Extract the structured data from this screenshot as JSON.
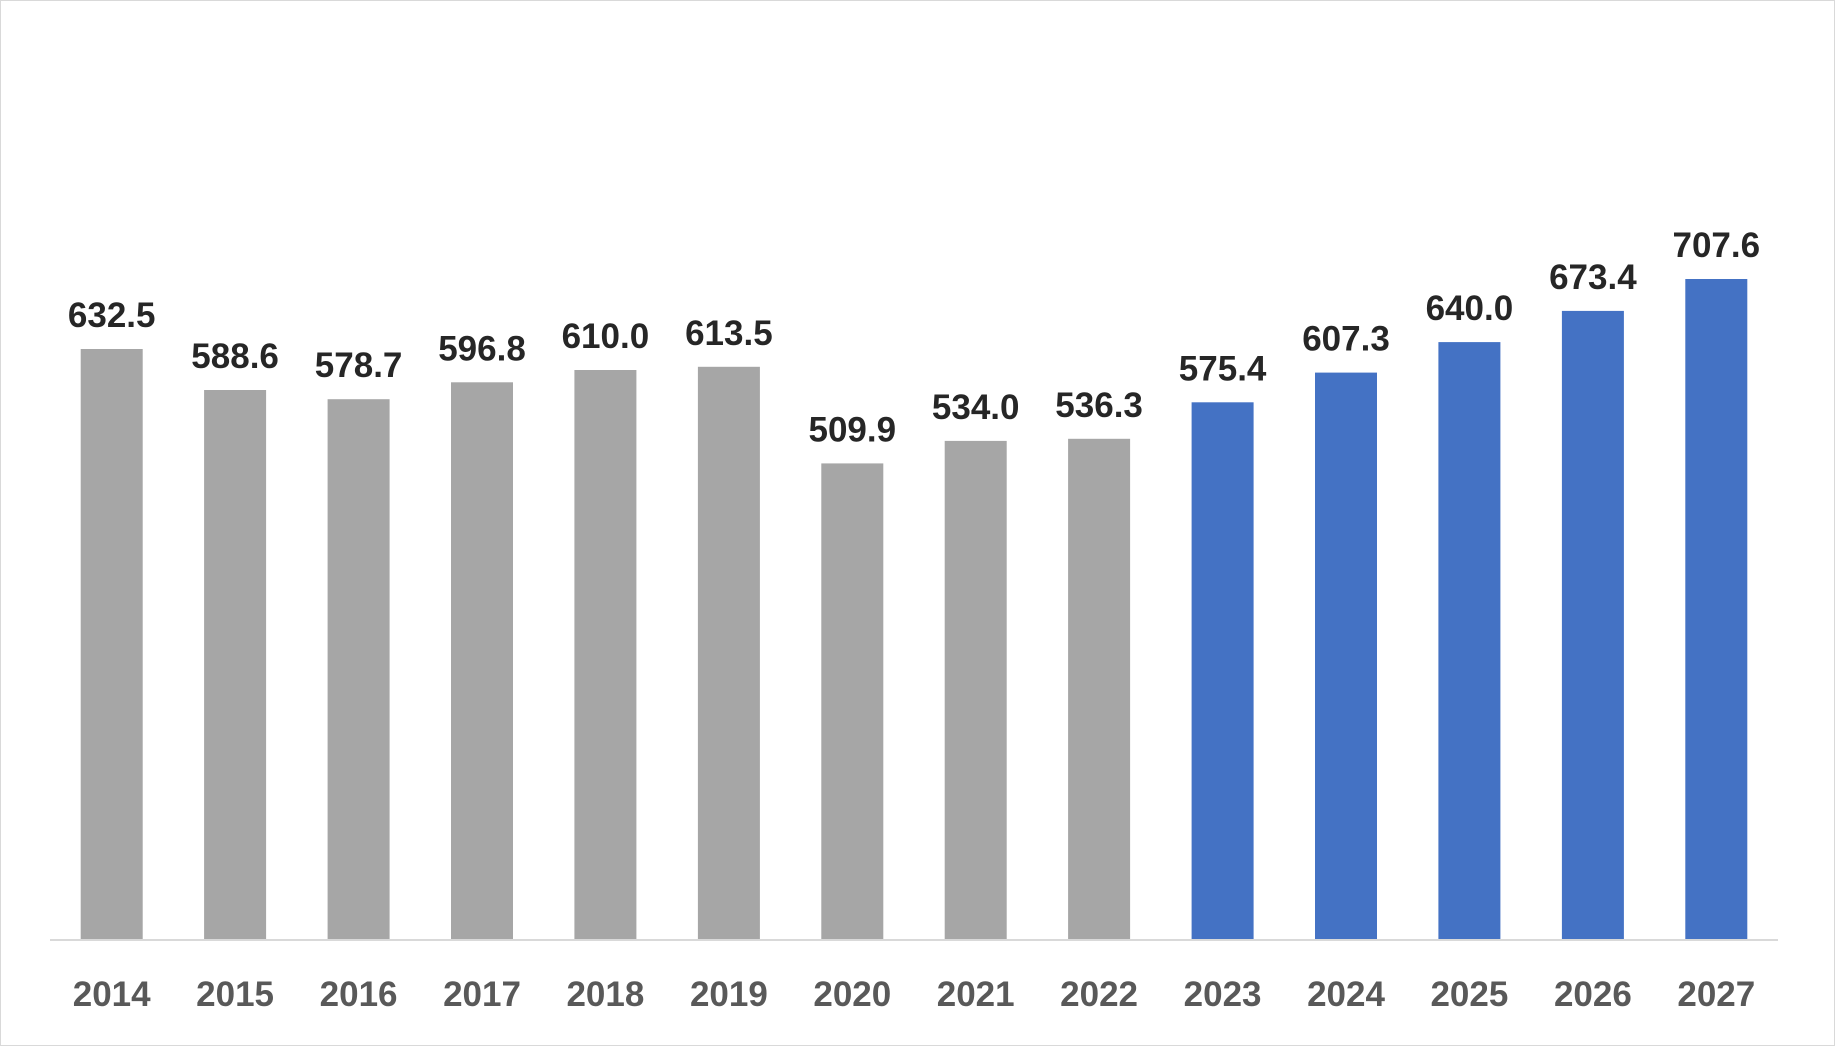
{
  "chart_data": {
    "type": "bar",
    "title": "",
    "xlabel": "",
    "ylabel": "",
    "categories": [
      "2014",
      "2015",
      "2016",
      "2017",
      "2018",
      "2019",
      "2020",
      "2021",
      "2022",
      "2023",
      "2024",
      "2025",
      "2026",
      "2027"
    ],
    "values": [
      632.5,
      588.6,
      578.7,
      596.8,
      610.0,
      613.5,
      509.9,
      534.0,
      536.3,
      575.4,
      607.3,
      640.0,
      673.4,
      707.6
    ],
    "value_labels": [
      "632.5",
      "588.6",
      "578.7",
      "596.8",
      "610.0",
      "613.5",
      "509.9",
      "534.0",
      "536.3",
      "575.4",
      "607.3",
      "640.0",
      "673.4",
      "707.6"
    ],
    "bar_colors": [
      "#a6a6a6",
      "#a6a6a6",
      "#a6a6a6",
      "#a6a6a6",
      "#a6a6a6",
      "#a6a6a6",
      "#a6a6a6",
      "#a6a6a6",
      "#a6a6a6",
      "#4472c4",
      "#4472c4",
      "#4472c4",
      "#4472c4",
      "#4472c4"
    ],
    "ylim": [
      0,
      707.6
    ],
    "grid": false,
    "legend": "none",
    "axis_line_color": "#d9d9d9"
  }
}
